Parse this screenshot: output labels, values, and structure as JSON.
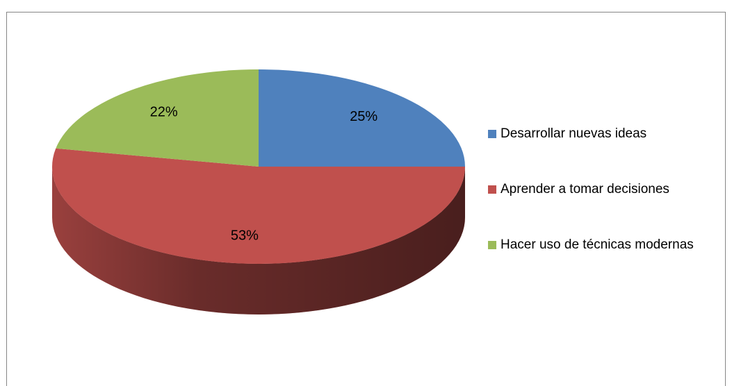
{
  "chart_data": {
    "type": "pie",
    "categories": [
      "Desarrollar nuevas ideas",
      "Aprender a tomar decisiones",
      "Hacer uso de técnicas modernas"
    ],
    "values": [
      25,
      53,
      22
    ],
    "value_labels": [
      "25%",
      "53%",
      "22%"
    ],
    "colors": [
      "#4f81bd",
      "#c0504d",
      "#9bbb59"
    ],
    "legend": "right"
  }
}
